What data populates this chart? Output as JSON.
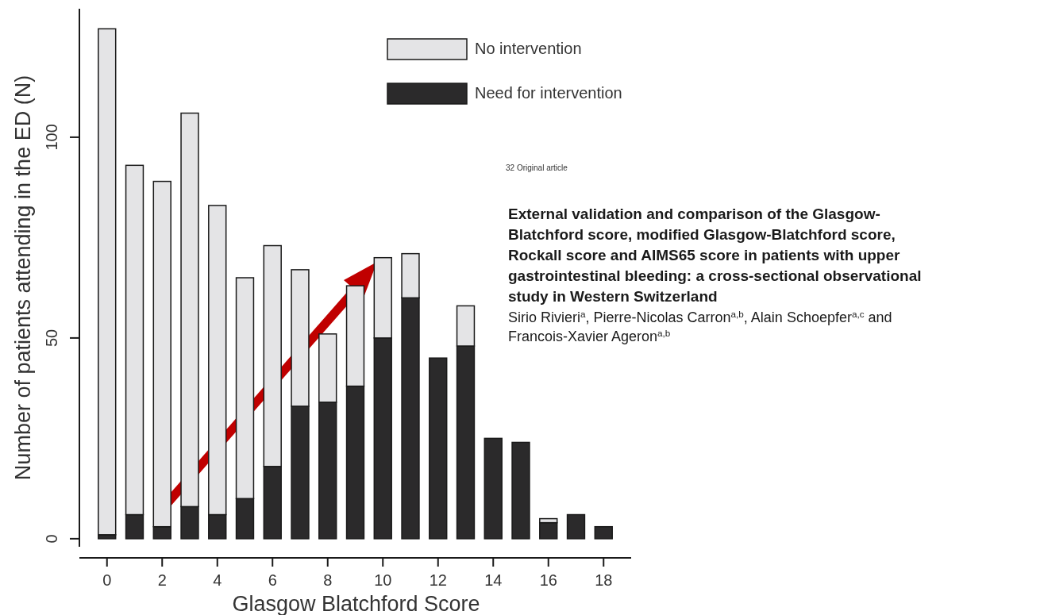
{
  "chart_data": {
    "type": "bar",
    "stacked": true,
    "xlabel": "Glasgow Blatchford Score",
    "ylabel": "Number of patients attending in the ED (N)",
    "x": [
      0,
      1,
      2,
      3,
      4,
      5,
      6,
      7,
      8,
      9,
      10,
      11,
      12,
      13,
      14,
      15,
      16,
      17,
      18
    ],
    "xlim": [
      -1,
      19
    ],
    "xticks": [
      0,
      2,
      4,
      6,
      8,
      10,
      12,
      14,
      16,
      18
    ],
    "ylim": [
      -2,
      132
    ],
    "yticks": [
      0,
      50,
      100
    ],
    "series": [
      {
        "name": "Need for intervention",
        "color": "#2b2a2b",
        "values": [
          1,
          6,
          3,
          8,
          6,
          10,
          18,
          33,
          34,
          38,
          50,
          60,
          45,
          48,
          25,
          24,
          4,
          6,
          3
        ]
      },
      {
        "name": "No intervention",
        "color": "#e4e4e6",
        "values": [
          126,
          87,
          86,
          98,
          77,
          55,
          55,
          34,
          17,
          25,
          20,
          11,
          0,
          10,
          0,
          0,
          1,
          0,
          0
        ]
      }
    ],
    "legend": "top right",
    "annotations": [
      "32 Original article",
      "External validation and comparison of the Glasgow-Blatchford score, modified Glasgow-Blatchford score, Rockall score and AIMS65 score in patients with upper gastrointestinal bleeding: a cross-sectional observational study in Western Switzerland",
      "Sirio Rivieri$^{a}$, Pierre-Nicolas Carron$^{a,b}$, Alain Schoepfer$^{a,c}$ and Francois-Xavier Ageron$^{a,b}$"
    ]
  }
}
